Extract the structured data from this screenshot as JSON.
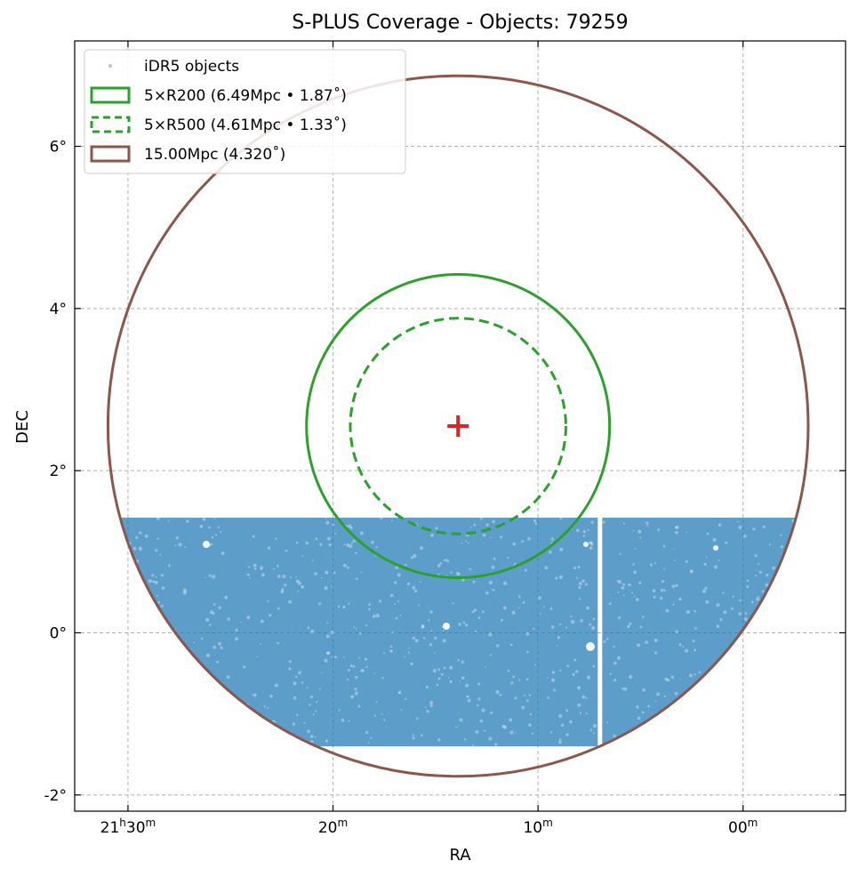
{
  "chart_data": {
    "type": "scatter",
    "title": "S-PLUS Coverage - Objects: 79259",
    "xlabel": "RA",
    "ylabel": "DEC",
    "x_ticks": [
      {
        "ra_min": 30,
        "h": "21",
        "hs": "h",
        "m": "30",
        "ms": "m"
      },
      {
        "ra_min": 20,
        "h": "",
        "hs": "",
        "m": "20",
        "ms": "m"
      },
      {
        "ra_min": 10,
        "h": "",
        "hs": "",
        "m": "10",
        "ms": "m"
      },
      {
        "ra_min": 0,
        "h": "",
        "hs": "",
        "m": "00",
        "ms": "m"
      }
    ],
    "y_ticks": [
      {
        "dec": 6,
        "label": "6°"
      },
      {
        "dec": 4,
        "label": "4°"
      },
      {
        "dec": 2,
        "label": "2°"
      },
      {
        "dec": 0,
        "label": "0°"
      },
      {
        "dec": -2,
        "label": "-2°"
      }
    ],
    "x_unit": "RA minutes offset from 21h00m (axis inverted)",
    "xlim": [
      32.6,
      -5.0
    ],
    "ylim": [
      -2.2,
      7.3
    ],
    "grid": true,
    "legend_position": "top-left",
    "center": {
      "ra_min": 13.9,
      "dec": 2.55
    },
    "objects_region": {
      "dec_min": -1.4,
      "dec_max": 1.42,
      "gap_ra_min": 7.0
    },
    "legend": [
      {
        "label": "iDR5 objects",
        "kind": "point",
        "color": "#1f77b4"
      },
      {
        "label": "5×R200 (6.49Mpc • 1.87˚)",
        "kind": "solid",
        "color": "#2ca02c"
      },
      {
        "label": "5×R500 (4.61Mpc • 1.33˚)",
        "kind": "dashed",
        "color": "#2ca02c"
      },
      {
        "label": "15.00Mpc (4.320˚)",
        "kind": "solid",
        "color": "#8c564b"
      }
    ],
    "circles": [
      {
        "name": "5×R200",
        "radius_deg": 1.87,
        "color": "#2ca02c",
        "style": "solid"
      },
      {
        "name": "5×R500",
        "radius_deg": 1.33,
        "color": "#2ca02c",
        "style": "dashed"
      },
      {
        "name": "15.00Mpc",
        "radius_deg": 4.32,
        "color": "#8c564b",
        "style": "solid"
      }
    ],
    "colors": {
      "objects": "#1f77b4",
      "center_marker": "#d62728",
      "grid": "#b0b0b0"
    }
  }
}
